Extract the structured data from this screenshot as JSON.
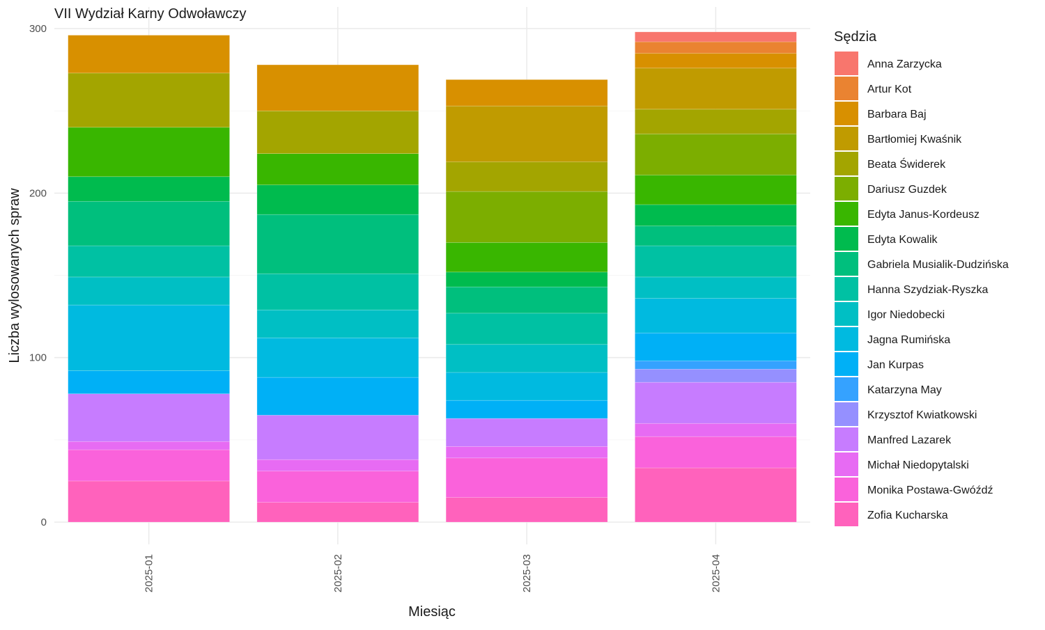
{
  "chart_data": {
    "type": "bar",
    "stacked": true,
    "title": "VII Wydział Karny Odwoławczy",
    "xlabel": "Miesiąc",
    "ylabel": "Liczba wylosowanych spraw",
    "categories": [
      "2025-01",
      "2025-02",
      "2025-03",
      "2025-04"
    ],
    "ylim": [
      0,
      300
    ],
    "yticks": [
      0,
      100,
      200,
      300
    ],
    "grid": true,
    "legend_title": "Sędzia",
    "legend_position": "right",
    "series": [
      {
        "name": "Anna Zarzycka",
        "color": "#F8766D",
        "values": [
          0,
          0,
          0,
          6
        ]
      },
      {
        "name": "Artur Kot",
        "color": "#EA8331",
        "values": [
          0,
          0,
          0,
          7
        ]
      },
      {
        "name": "Barbara Baj",
        "color": "#D89000",
        "values": [
          23,
          28,
          16,
          9
        ]
      },
      {
        "name": "Bartłomiej Kwaśnik",
        "color": "#C09B00",
        "values": [
          0,
          0,
          34,
          25
        ]
      },
      {
        "name": "Beata Świderek",
        "color": "#A3A500",
        "values": [
          33,
          26,
          18,
          15
        ]
      },
      {
        "name": "Dariusz Guzdek",
        "color": "#7CAE00",
        "values": [
          0,
          0,
          31,
          25
        ]
      },
      {
        "name": "Edyta Janus-Kordeusz",
        "color": "#39B600",
        "values": [
          30,
          19,
          18,
          18
        ]
      },
      {
        "name": "Edyta Kowalik",
        "color": "#00BB4E",
        "values": [
          15,
          18,
          9,
          13
        ]
      },
      {
        "name": "Gabriela Musialik-Dudzińska",
        "color": "#00BF7D",
        "values": [
          27,
          36,
          16,
          12
        ]
      },
      {
        "name": "Hanna Szydziak-Ryszka",
        "color": "#00C1A3",
        "values": [
          19,
          22,
          19,
          19
        ]
      },
      {
        "name": "Igor Niedobecki",
        "color": "#00BFC4",
        "values": [
          17,
          17,
          17,
          13
        ]
      },
      {
        "name": "Jagna Rumińska",
        "color": "#00BAE0",
        "values": [
          40,
          24,
          17,
          21
        ]
      },
      {
        "name": "Jan Kurpas",
        "color": "#00B0F6",
        "values": [
          14,
          23,
          11,
          17
        ]
      },
      {
        "name": "Katarzyna May",
        "color": "#35A2FF",
        "values": [
          0,
          0,
          0,
          5
        ]
      },
      {
        "name": "Krzysztof Kwiatkowski",
        "color": "#9590FF",
        "values": [
          0,
          0,
          0,
          8
        ]
      },
      {
        "name": "Manfred Lazarek",
        "color": "#C77CFF",
        "values": [
          29,
          27,
          17,
          25
        ]
      },
      {
        "name": "Michał Niedopytalski",
        "color": "#E76BF3",
        "values": [
          5,
          7,
          7,
          8
        ]
      },
      {
        "name": "Monika Postawa-Gwóźdź",
        "color": "#FA62DB",
        "values": [
          19,
          19,
          24,
          19
        ]
      },
      {
        "name": "Zofia Kucharska",
        "color": "#FF62BC",
        "values": [
          25,
          12,
          15,
          33
        ]
      }
    ]
  }
}
